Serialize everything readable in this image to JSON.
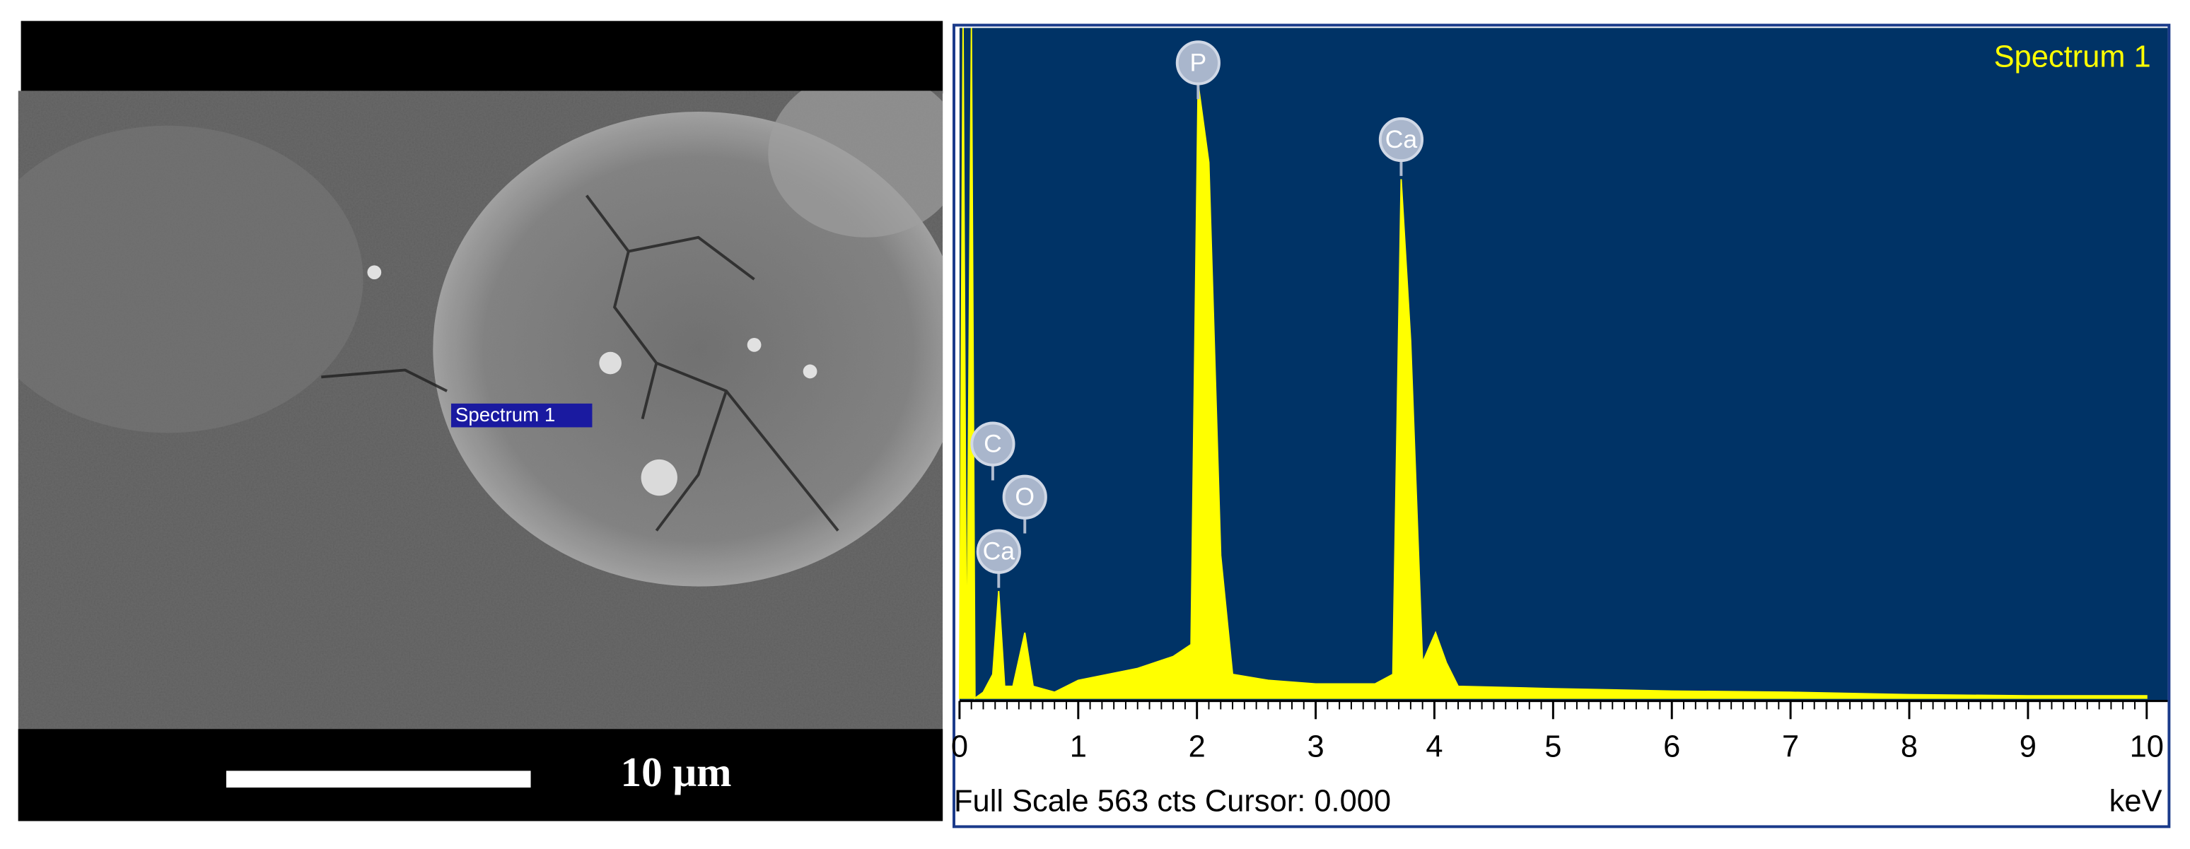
{
  "sem_image": {
    "marker_label": "Spectrum 1",
    "scale_bar_label": "10 μm"
  },
  "chart_data": {
    "type": "area",
    "title": "Spectrum 1",
    "color": "#ffff00",
    "background": "#003366",
    "x": [
      0.0,
      0.03,
      0.06,
      0.1,
      0.13,
      0.2,
      0.28,
      0.33,
      0.38,
      0.45,
      0.55,
      0.62,
      0.8,
      1.0,
      1.5,
      1.8,
      1.95,
      2.01,
      2.1,
      2.2,
      2.3,
      2.6,
      3.0,
      3.5,
      3.65,
      3.72,
      3.8,
      3.9,
      4.01,
      4.1,
      4.2,
      5.0,
      6.0,
      7.0,
      8.0,
      9.0,
      10.0
    ],
    "values": [
      0,
      563,
      0,
      563,
      0,
      5,
      20,
      90,
      10,
      10,
      55,
      10,
      5,
      15,
      25,
      35,
      45,
      516,
      450,
      120,
      20,
      15,
      12,
      12,
      20,
      436,
      300,
      30,
      55,
      30,
      10,
      8,
      6,
      5,
      3,
      2,
      2
    ],
    "xlim": [
      0,
      10
    ],
    "ylim": [
      0,
      563
    ],
    "xticks": [
      0,
      1,
      2,
      3,
      4,
      5,
      6,
      7,
      8,
      9,
      10
    ],
    "x_unit_label": "keV",
    "footer": "Full Scale 563 cts Cursor: 0.000",
    "annotations": [
      {
        "text": "P",
        "x": 2.01
      },
      {
        "text": "Ca",
        "x": 3.72
      },
      {
        "text": "C",
        "x": 0.28
      },
      {
        "text": "O",
        "x": 0.55
      },
      {
        "text": "Ca",
        "x": 0.33
      }
    ]
  }
}
